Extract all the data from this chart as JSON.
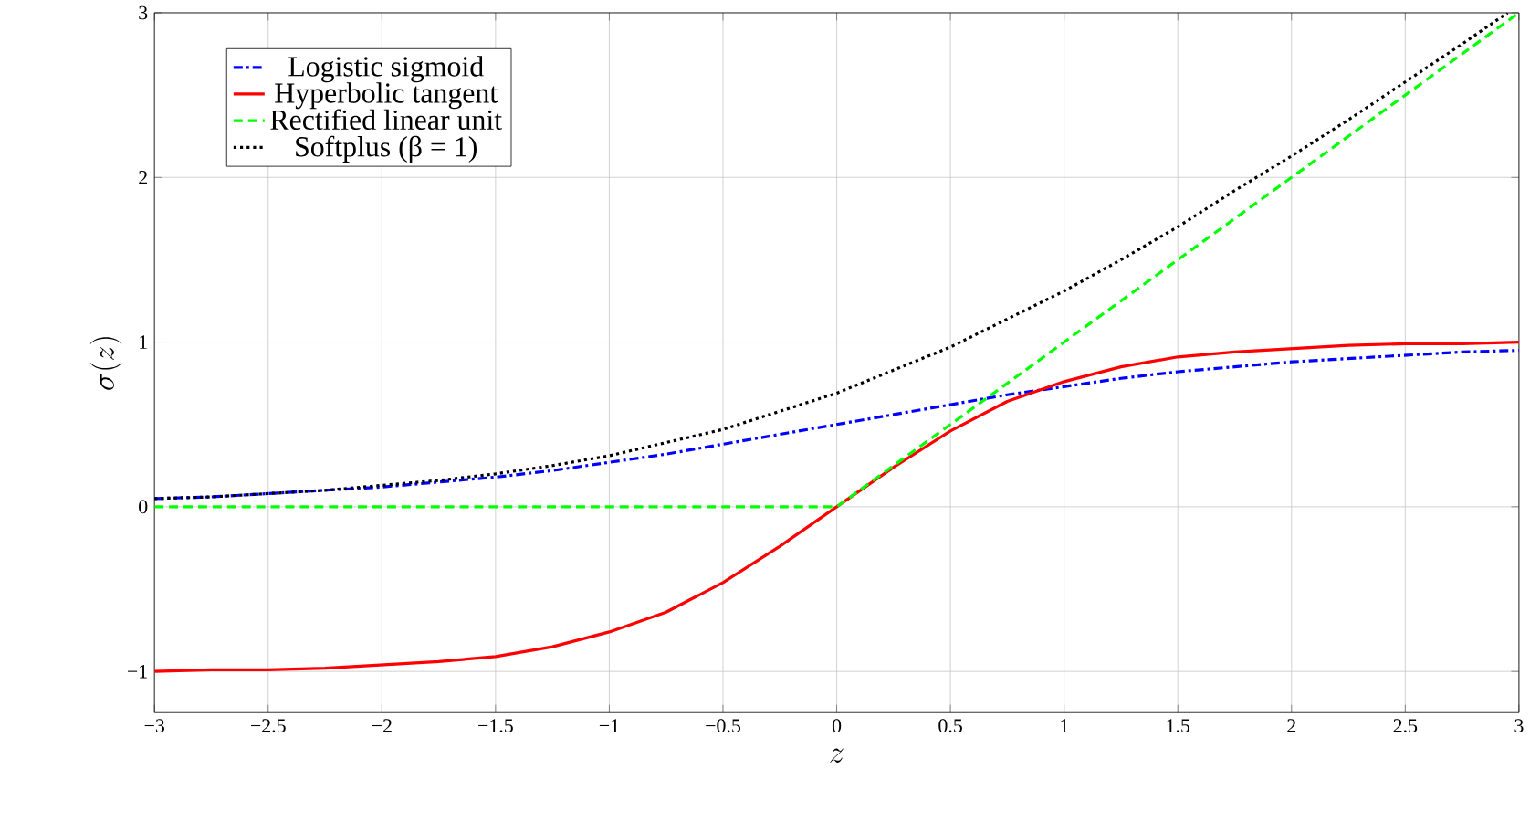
{
  "chart_data": {
    "type": "line",
    "xlabel": "z",
    "ylabel": "\\sigma(z)",
    "x": [
      -3,
      -2.75,
      -2.5,
      -2.25,
      -2,
      -1.75,
      -1.5,
      -1.25,
      -1,
      -0.75,
      -0.5,
      -0.25,
      0,
      0.25,
      0.5,
      0.75,
      1,
      1.25,
      1.5,
      1.75,
      2,
      2.25,
      2.5,
      2.75,
      3
    ],
    "series": [
      {
        "name": "Logistic sigmoid",
        "color": "#0000ff",
        "line_style": "dashdot",
        "values": [
          0.05,
          0.06,
          0.08,
          0.1,
          0.12,
          0.15,
          0.18,
          0.22,
          0.27,
          0.32,
          0.38,
          0.44,
          0.5,
          0.56,
          0.62,
          0.68,
          0.73,
          0.78,
          0.82,
          0.85,
          0.88,
          0.9,
          0.92,
          0.94,
          0.95
        ]
      },
      {
        "name": "Hyperbolic tangent",
        "color": "#ff0000",
        "line_style": "solid",
        "values": [
          -1.0,
          -0.99,
          -0.99,
          -0.98,
          -0.96,
          -0.94,
          -0.91,
          -0.85,
          -0.76,
          -0.64,
          -0.46,
          -0.24,
          0,
          0.24,
          0.46,
          0.64,
          0.76,
          0.85,
          0.91,
          0.94,
          0.96,
          0.98,
          0.99,
          0.99,
          1.0
        ]
      },
      {
        "name": "Rectified linear unit",
        "color": "#00ff00",
        "line_style": "dashed",
        "values": [
          0,
          0,
          0,
          0,
          0,
          0,
          0,
          0,
          0,
          0,
          0,
          0,
          0,
          0.25,
          0.5,
          0.75,
          1,
          1.25,
          1.5,
          1.75,
          2,
          2.25,
          2.5,
          2.75,
          3
        ]
      },
      {
        "name": "Softplus (β = 1)",
        "color": "#000000",
        "line_style": "dotted",
        "x": [
          -3,
          -2.75,
          -2.5,
          -2.25,
          -2,
          -1.75,
          -1.5,
          -1.25,
          -1,
          -0.75,
          -0.5,
          -0.25,
          0,
          0.25,
          0.5,
          0.75,
          1,
          1.25,
          1.5,
          1.75,
          2,
          2.25,
          2.5,
          2.75,
          2.95
        ],
        "values": [
          0.05,
          0.06,
          0.08,
          0.1,
          0.13,
          0.16,
          0.2,
          0.25,
          0.31,
          0.39,
          0.47,
          0.58,
          0.69,
          0.83,
          0.97,
          1.14,
          1.31,
          1.5,
          1.7,
          1.92,
          2.13,
          2.35,
          2.58,
          2.81,
          3.0
        ]
      }
    ],
    "xlim": [
      -3,
      3
    ],
    "ylim": [
      -1.25,
      3
    ],
    "xticks": [
      {
        "value": -3,
        "label": "−3"
      },
      {
        "value": -2.5,
        "label": "−2.5"
      },
      {
        "value": -2,
        "label": "−2"
      },
      {
        "value": -1.5,
        "label": "−1.5"
      },
      {
        "value": -1,
        "label": "−1"
      },
      {
        "value": -0.5,
        "label": "−0.5"
      },
      0,
      0.5,
      1,
      1.5,
      2,
      2.5,
      3
    ],
    "yticks": [
      {
        "value": -1,
        "label": "−1"
      },
      0,
      1,
      2,
      3
    ],
    "grid": true,
    "legend": "top left",
    "marker": "none"
  }
}
